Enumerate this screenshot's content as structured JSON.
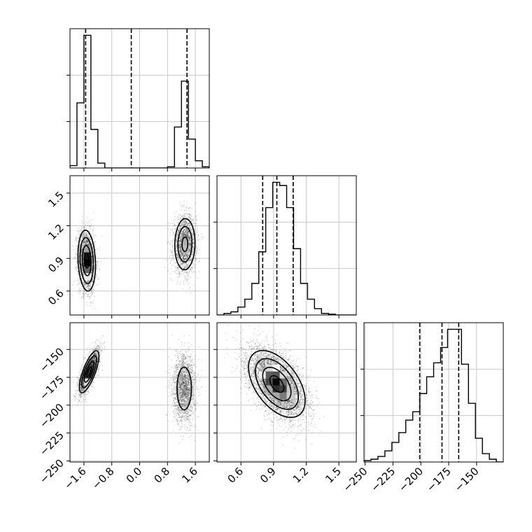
{
  "chart_data": {
    "type": "corner",
    "parameters": [
      {
        "index": 0,
        "range": [
          -2.0,
          2.0
        ],
        "ticks": [
          -1.6,
          -0.8,
          0.0,
          0.8,
          1.6
        ],
        "tick_labels": [
          "−1.6",
          "−0.8",
          "0.0",
          "0.8",
          "1.6"
        ]
      },
      {
        "index": 1,
        "range": [
          0.38,
          1.66
        ],
        "ticks": [
          0.6,
          0.9,
          1.2,
          1.5
        ],
        "tick_labels": [
          "0.6",
          "0.9",
          "1.2",
          "1.5"
        ]
      },
      {
        "index": 2,
        "range": [
          -251,
          -126
        ],
        "ticks": [
          -250,
          -225,
          -200,
          -175,
          -150
        ],
        "tick_labels": [
          "−250",
          "−225",
          "−200",
          "−175",
          "−150"
        ]
      }
    ],
    "quantiles": [
      [
        -1.55,
        -0.24,
        1.36
      ],
      [
        0.8,
        0.93,
        1.08
      ],
      [
        -201,
        -181,
        -166
      ]
    ],
    "histograms": [
      {
        "edges": [
          -2.0,
          -1.8,
          -1.6,
          -1.4,
          -1.2,
          -1.0,
          -0.8,
          -0.6,
          -0.4,
          -0.2,
          0.0,
          0.2,
          0.4,
          0.6,
          0.8,
          1.0,
          1.2,
          1.4,
          1.6,
          1.8,
          2.0
        ],
        "counts": [
          1,
          27,
          55,
          16,
          2,
          0,
          0,
          0,
          0,
          0,
          0,
          0,
          0,
          0,
          0.5,
          17,
          36,
          12,
          3,
          0.5
        ]
      },
      {
        "edges": [
          0.38,
          0.444,
          0.508,
          0.572,
          0.636,
          0.7,
          0.764,
          0.828,
          0.892,
          0.956,
          1.02,
          1.084,
          1.148,
          1.212,
          1.276,
          1.34,
          1.404,
          1.468,
          1.532,
          1.596,
          1.66
        ],
        "counts": [
          0,
          1,
          2,
          5,
          10,
          20,
          40,
          68,
          84,
          82,
          68,
          42,
          20,
          10,
          4,
          1,
          0.5,
          0,
          0,
          0
        ]
      },
      {
        "edges": [
          -251,
          -244.75,
          -238.5,
          -232.25,
          -226,
          -219.75,
          -213.5,
          -207.25,
          -201,
          -194.75,
          -188.5,
          -182.25,
          -176,
          -169.75,
          -163.5,
          -157.25,
          -151,
          -144.75,
          -138.5,
          -132.25,
          -126
        ],
        "counts": [
          1,
          2,
          4,
          8,
          14,
          21,
          30,
          36,
          49,
          61,
          71,
          82,
          95,
          95,
          70,
          42,
          17,
          6,
          2,
          0
        ]
      }
    ],
    "contours": [
      {
        "row": 1,
        "col": 0,
        "blobs": [
          {
            "center": [
              -1.52,
              0.88
            ],
            "sd": [
              0.125,
              0.14
            ],
            "rho": -0.15,
            "n": 2400
          },
          {
            "center": [
              1.3,
              1.03
            ],
            "sd": [
              0.16,
              0.13
            ],
            "rho": 0.05,
            "n": 2000
          }
        ]
      },
      {
        "row": 2,
        "col": 0,
        "blobs": [
          {
            "center": [
              -1.45,
              -170
            ],
            "sd": [
              0.14,
              9.5
            ],
            "rho": 0.75,
            "n": 2400
          },
          {
            "center": [
              1.28,
              -185
            ],
            "sd": [
              0.16,
              15
            ],
            "rho": 0.0,
            "n": 2000
          }
        ]
      },
      {
        "row": 2,
        "col": 1,
        "blobs": [
          {
            "center": [
              0.93,
              -181
            ],
            "sd": [
              0.13,
              15
            ],
            "rho": -0.5,
            "n": 5500
          }
        ]
      }
    ],
    "grid": true,
    "histogram_style": "step",
    "quantile_style": "dashed"
  }
}
